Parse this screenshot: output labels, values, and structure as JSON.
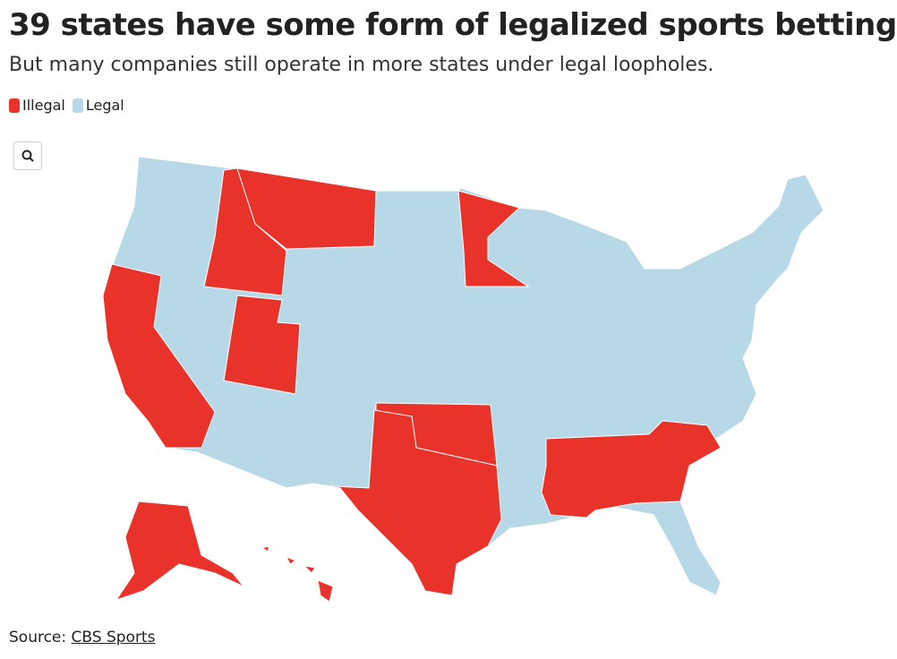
{
  "header": {
    "title": "39 states have some form of legalized sports betting",
    "subtitle": "But many companies still operate in more states under legal loopholes."
  },
  "legend": {
    "items": [
      {
        "label": "Illegal",
        "color": "#e8322a"
      },
      {
        "label": "Legal",
        "color": "#b7d8e6"
      }
    ]
  },
  "footer": {
    "source_prefix": "Source:",
    "source_link": "CBS Sports"
  }
}
